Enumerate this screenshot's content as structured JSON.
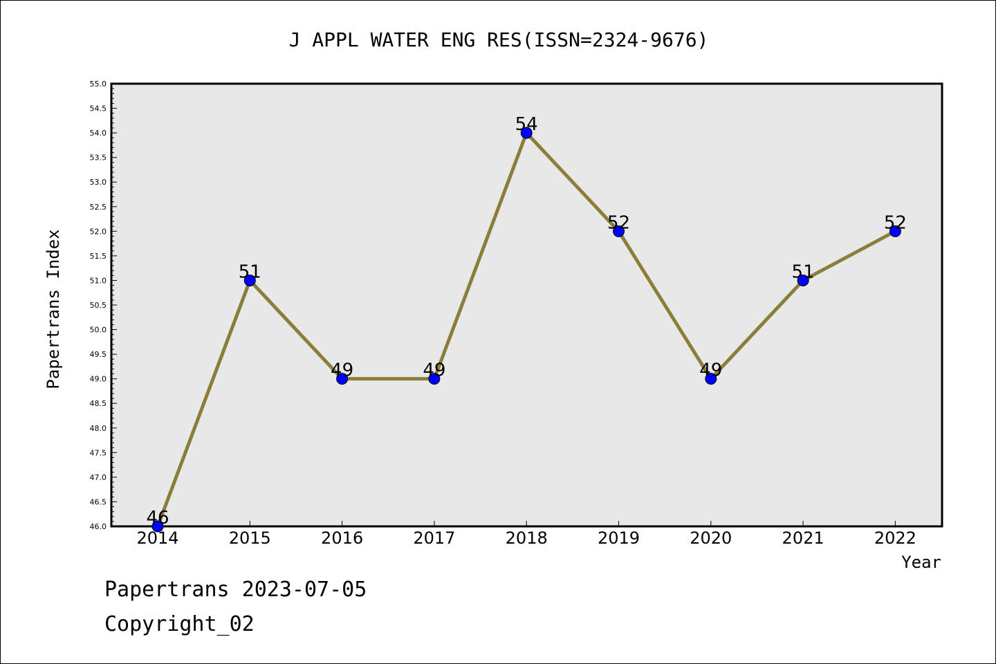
{
  "chart_data": {
    "type": "line",
    "title": "J APPL WATER ENG RES(ISSN=2324-9676)",
    "xlabel": "Year",
    "ylabel": "Papertrans Index",
    "categories": [
      "2014",
      "2015",
      "2016",
      "2017",
      "2018",
      "2019",
      "2020",
      "2021",
      "2022"
    ],
    "values": [
      46,
      51,
      49,
      49,
      54,
      52,
      49,
      51,
      52
    ],
    "data_labels": [
      "46",
      "51",
      "49",
      "49",
      "54",
      "52",
      "49",
      "51",
      "52"
    ],
    "ylim": [
      46.0,
      55.0
    ],
    "yticks": [
      "46.0",
      "46.5",
      "47.0",
      "47.5",
      "48.0",
      "48.5",
      "49.0",
      "49.5",
      "50.0",
      "50.5",
      "51.0",
      "51.5",
      "52.0",
      "52.5",
      "53.0",
      "53.5",
      "54.0",
      "54.5",
      "55.0"
    ],
    "grid": false,
    "legend": "none",
    "colors": {
      "plot_background": "#e8e8e8",
      "line": "#8b7d3a",
      "marker": "#0000ff"
    }
  },
  "footer": {
    "date_line": "Papertrans 2023-07-05",
    "copyright_line": "Copyright_02"
  }
}
